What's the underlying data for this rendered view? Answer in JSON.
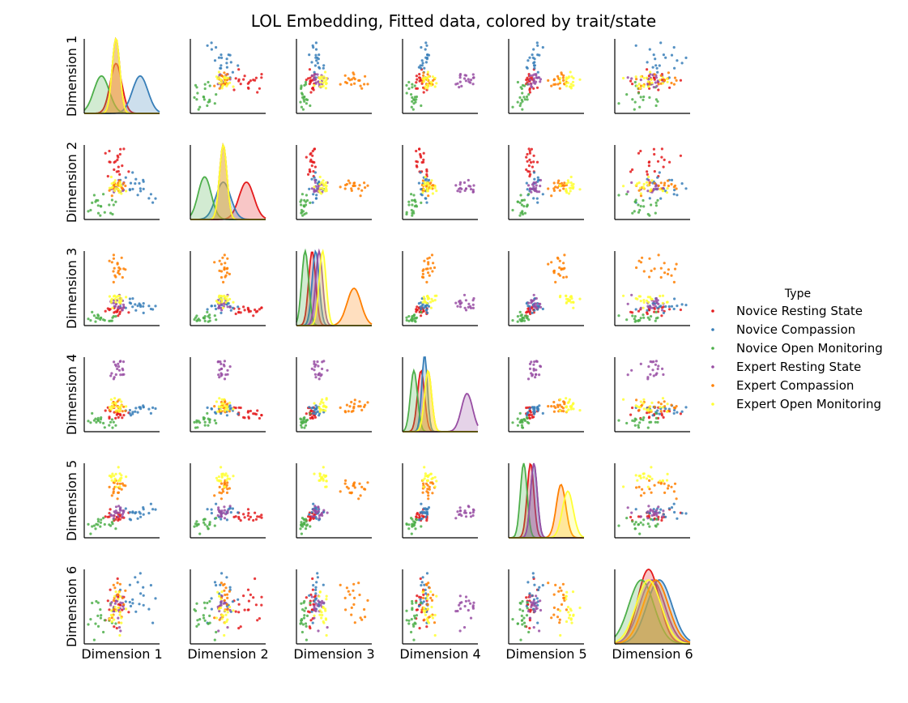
{
  "chart_data": {
    "type": "scatter",
    "title": "LOL Embedding, Fitted data, colored by trait/state",
    "dimensions": [
      "Dimension 1",
      "Dimension 2",
      "Dimension 3",
      "Dimension 4",
      "Dimension 5",
      "Dimension 6"
    ],
    "diagonal": "kde",
    "legend": {
      "title": "Type",
      "placement": "right"
    },
    "series": [
      {
        "name": "Novice Resting State",
        "color": "#e41a1c",
        "center": [
          0.5,
          0.7,
          0.15,
          0.15,
          0.15,
          0.0
        ],
        "spread": [
          0.06,
          0.08,
          0.05,
          0.05,
          0.05,
          0.3
        ]
      },
      {
        "name": "Novice Compassion",
        "color": "#377eb8",
        "center": [
          0.75,
          0.45,
          0.2,
          0.2,
          0.2,
          0.3
        ],
        "spread": [
          0.08,
          0.08,
          0.05,
          0.04,
          0.05,
          0.35
        ]
      },
      {
        "name": "Novice Open Monitoring",
        "color": "#4daf4a",
        "center": [
          0.35,
          0.25,
          0.05,
          0.05,
          0.05,
          -0.2
        ],
        "spread": [
          0.08,
          0.07,
          0.05,
          0.05,
          0.05,
          0.35
        ]
      },
      {
        "name": "Expert Resting State",
        "color": "#984ea3",
        "center": [
          0.5,
          0.45,
          0.25,
          0.8,
          0.2,
          0.1
        ],
        "spread": [
          0.04,
          0.04,
          0.05,
          0.08,
          0.05,
          0.35
        ]
      },
      {
        "name": "Expert Compassion",
        "color": "#ff7f00",
        "center": [
          0.5,
          0.45,
          0.75,
          0.25,
          0.6,
          0.2
        ],
        "spread": [
          0.04,
          0.04,
          0.1,
          0.05,
          0.07,
          0.35
        ]
      },
      {
        "name": "Expert Open Monitoring",
        "color": "#ffff33",
        "center": [
          0.5,
          0.45,
          0.3,
          0.25,
          0.7,
          0.0
        ],
        "spread": [
          0.04,
          0.04,
          0.05,
          0.05,
          0.08,
          0.35
        ]
      }
    ]
  }
}
